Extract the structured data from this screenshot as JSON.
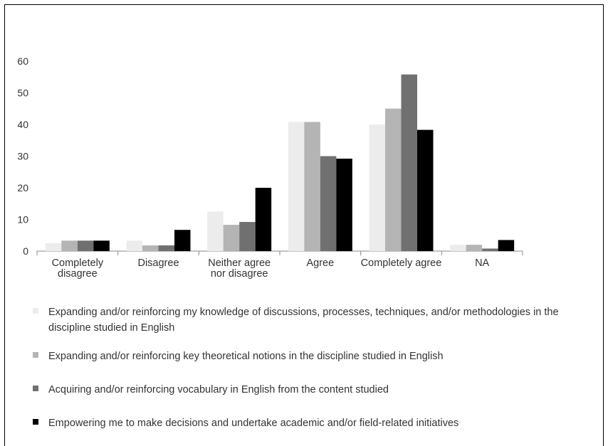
{
  "chart_data": {
    "type": "bar",
    "title": "",
    "xlabel": "",
    "ylabel": "",
    "ylim": [
      0,
      60
    ],
    "yticks": [
      "0",
      "10",
      "20",
      "30",
      "40",
      "50",
      "60"
    ],
    "grid": false,
    "legend_position": "bottom",
    "categories": [
      [
        "Completely",
        "disagree"
      ],
      [
        "Disagree"
      ],
      [
        "Neither agree",
        "nor disagree"
      ],
      [
        "Agree"
      ],
      [
        "Completely agree"
      ],
      [
        "NA"
      ]
    ],
    "series": [
      {
        "name": "Expanding and/or reinforcing my knowledge of discussions, processes, techniques, and/or methodologies in the discipline studied in English",
        "color": "#ececec",
        "values": [
          2.5,
          3.3,
          12.5,
          40.8,
          40,
          2
        ]
      },
      {
        "name": "Expanding and/or reinforcing key theoretical notions in the discipline studied in English",
        "color": "#b4b4b4",
        "values": [
          3.3,
          1.8,
          8.3,
          40.8,
          45,
          2
        ]
      },
      {
        "name": "Acquiring and/or reinforcing vocabulary in English from the content studied",
        "color": "#707070",
        "values": [
          3.3,
          1.8,
          9.2,
          30,
          55.8,
          0.8
        ]
      },
      {
        "name": "Empowering me to make decisions and undertake academic and/or field-related initiatives",
        "color": "#000000",
        "values": [
          3.3,
          6.7,
          20,
          29.2,
          38.3,
          3.5
        ]
      }
    ]
  }
}
